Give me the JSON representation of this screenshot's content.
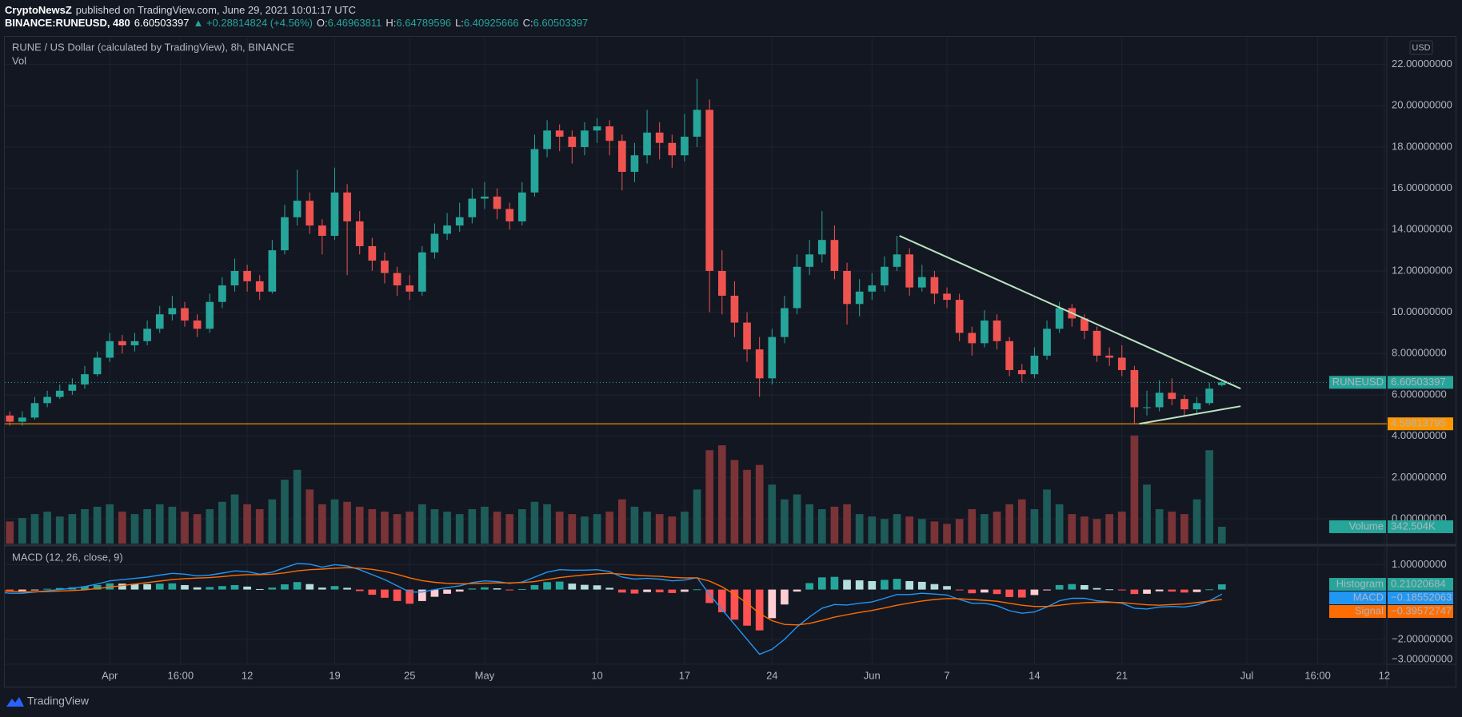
{
  "header": {
    "publisher": "CryptoNewsZ",
    "published": "published on TradingView.com, June 29, 2021 10:01:17 UTC",
    "symbol": "BINANCE:RUNEUSD, 480",
    "price": "6.60503397",
    "change": "▲ +0.28814824 (+4.56%)",
    "ohlc": [
      [
        "O:",
        "6.46963811"
      ],
      [
        "H:",
        "6.64789596"
      ],
      [
        "L:",
        "6.40925666"
      ],
      [
        "C:",
        "6.60503397"
      ]
    ],
    "currency": "USD"
  },
  "footer": {
    "brand": "TradingView"
  },
  "chart_data": [
    {
      "type": "candlestick",
      "title": "RUNE / US Dollar (calculated by TradingView), 8h, BINANCE",
      "up_color": "#26a69a",
      "down_color": "#ef5350",
      "open": [
        4.9,
        5.0,
        4.7,
        4.9,
        5.6,
        5.9,
        6.2,
        6.5,
        7.0,
        7.8,
        8.6,
        8.4,
        8.6,
        9.2,
        9.9,
        10.2,
        9.6,
        9.2,
        10.5,
        11.3,
        12.0,
        11.5,
        11.0,
        13.0,
        14.6,
        15.4,
        14.2,
        13.7,
        15.8,
        14.4,
        13.2,
        12.5,
        11.9,
        11.3,
        11.0,
        12.9,
        13.8,
        14.2,
        14.6,
        15.5,
        15.6,
        15.0,
        14.4,
        15.8,
        17.9,
        18.8,
        18.5,
        18.0,
        18.8,
        19.0,
        18.3,
        16.8,
        17.6,
        18.7,
        18.2,
        17.6,
        18.5,
        19.8,
        12.0,
        10.8,
        9.5,
        8.2,
        6.8,
        8.8,
        10.2,
        12.2,
        12.8,
        13.5,
        12.0,
        10.4,
        11.0,
        11.3,
        12.2,
        12.8,
        11.2,
        11.7,
        10.9,
        10.6,
        9.0,
        8.5,
        9.6,
        8.6,
        7.2,
        7.0,
        7.9,
        9.2,
        10.2,
        9.7,
        9.1,
        7.9,
        7.8,
        7.2,
        5.4,
        5.4,
        6.1,
        5.8,
        5.3,
        5.6,
        6.47
      ],
      "high": [
        5.3,
        5.2,
        5.2,
        5.9,
        6.2,
        6.5,
        6.8,
        7.4,
        8.1,
        9.0,
        8.9,
        9.0,
        9.6,
        10.3,
        10.8,
        10.5,
        9.9,
        10.9,
        11.7,
        12.6,
        12.3,
        11.8,
        13.5,
        15.2,
        16.9,
        15.8,
        14.5,
        17.0,
        16.2,
        14.9,
        13.6,
        12.9,
        12.2,
        11.8,
        13.2,
        14.3,
        14.8,
        15.3,
        16.0,
        16.3,
        16.0,
        15.3,
        16.3,
        18.6,
        19.3,
        19.1,
        18.8,
        19.2,
        19.4,
        19.3,
        18.6,
        18.2,
        19.8,
        19.2,
        18.6,
        19.6,
        21.3,
        20.3,
        13.0,
        11.5,
        10.0,
        8.8,
        9.2,
        10.8,
        12.8,
        13.5,
        14.9,
        14.2,
        12.4,
        11.6,
        11.9,
        12.7,
        13.7,
        13.1,
        12.3,
        12.0,
        11.2,
        10.9,
        9.3,
        10.1,
        9.9,
        8.8,
        7.5,
        8.3,
        9.6,
        10.5,
        10.4,
        9.9,
        9.3,
        8.3,
        8.4,
        7.4,
        6.2,
        6.7,
        6.8,
        6.0,
        5.9,
        6.6,
        6.65
      ],
      "low": [
        4.6,
        4.5,
        4.5,
        4.8,
        5.4,
        5.8,
        6.0,
        6.3,
        6.9,
        7.6,
        8.0,
        8.1,
        8.4,
        9.0,
        9.6,
        9.3,
        8.8,
        9.0,
        10.2,
        11.0,
        11.0,
        10.6,
        10.9,
        12.8,
        14.2,
        13.8,
        12.8,
        13.5,
        11.8,
        12.8,
        12.0,
        11.4,
        10.8,
        10.6,
        10.8,
        12.6,
        13.5,
        13.9,
        14.3,
        15.0,
        14.5,
        14.0,
        14.2,
        15.6,
        17.5,
        17.8,
        17.2,
        17.6,
        18.2,
        17.6,
        15.9,
        16.3,
        17.2,
        17.4,
        17.0,
        17.3,
        18.0,
        10.0,
        9.9,
        8.8,
        7.6,
        5.9,
        6.5,
        8.5,
        9.9,
        11.8,
        12.4,
        11.6,
        9.4,
        9.8,
        10.6,
        11.0,
        12.0,
        10.8,
        11.0,
        10.4,
        10.2,
        8.6,
        7.9,
        8.3,
        8.2,
        6.9,
        6.6,
        6.8,
        7.7,
        9.0,
        9.3,
        8.7,
        7.6,
        7.4,
        6.9,
        4.6,
        5.0,
        5.2,
        5.5,
        5.0,
        5.1,
        5.5,
        6.41
      ],
      "close": [
        5.0,
        4.7,
        4.9,
        5.6,
        5.9,
        6.2,
        6.5,
        7.0,
        7.8,
        8.6,
        8.4,
        8.6,
        9.2,
        9.9,
        10.2,
        9.6,
        9.2,
        10.5,
        11.3,
        12.0,
        11.5,
        11.0,
        13.0,
        14.6,
        15.4,
        14.2,
        13.7,
        15.8,
        14.4,
        13.2,
        12.5,
        11.9,
        11.3,
        11.0,
        12.9,
        13.8,
        14.2,
        14.6,
        15.5,
        15.6,
        15.0,
        14.4,
        15.8,
        17.9,
        18.8,
        18.5,
        18.0,
        18.8,
        19.0,
        18.3,
        16.8,
        17.6,
        18.7,
        18.2,
        17.6,
        18.5,
        19.8,
        12.0,
        10.8,
        9.5,
        8.2,
        6.8,
        8.8,
        10.2,
        12.2,
        12.8,
        13.5,
        12.0,
        10.4,
        11.0,
        11.3,
        12.2,
        12.8,
        11.2,
        11.7,
        10.9,
        10.6,
        9.0,
        8.5,
        9.6,
        8.6,
        7.2,
        7.0,
        7.9,
        9.2,
        10.2,
        9.7,
        9.1,
        7.9,
        7.8,
        7.2,
        5.4,
        5.4,
        6.1,
        5.8,
        5.3,
        5.6,
        6.3,
        6.60503397
      ],
      "last_name": "RUNEUSD",
      "last_label": "6.60503397",
      "xlim": [
        0.6,
        111.2
      ],
      "xticks": [
        {
          "value": 9,
          "label": "Apr"
        },
        {
          "value": 14.67,
          "label": "16:00"
        },
        {
          "value": 20,
          "label": "12"
        },
        {
          "value": 27,
          "label": "19"
        },
        {
          "value": 33,
          "label": "25"
        },
        {
          "value": 39,
          "label": "May"
        },
        {
          "value": 48,
          "label": "10"
        },
        {
          "value": 55,
          "label": "17"
        },
        {
          "value": 62,
          "label": "24"
        },
        {
          "value": 70,
          "label": "Jun"
        },
        {
          "value": 76,
          "label": "7"
        },
        {
          "value": 83,
          "label": "14"
        },
        {
          "value": 90,
          "label": "21"
        },
        {
          "value": 100,
          "label": "Jul"
        },
        {
          "value": 105.67,
          "label": "16:00"
        },
        {
          "value": 111,
          "label": "12"
        }
      ],
      "ylim": [
        -1.2,
        23.3
      ],
      "yticks": [
        {
          "value": 0,
          "label": "0.00000000"
        },
        {
          "value": 2,
          "label": "2.00000000"
        },
        {
          "value": 4,
          "label": "4.00000000"
        },
        {
          "value": 6,
          "label": "6.00000000"
        },
        {
          "value": 8,
          "label": "8.00000000"
        },
        {
          "value": 10,
          "label": "10.00000000"
        },
        {
          "value": 12,
          "label": "12.00000000"
        },
        {
          "value": 14,
          "label": "14.00000000"
        },
        {
          "value": 16,
          "label": "16.00000000"
        },
        {
          "value": 18,
          "label": "18.00000000"
        },
        {
          "value": 20,
          "label": "20.00000000"
        },
        {
          "value": 22,
          "label": "22.00000000"
        }
      ],
      "grid": true,
      "hline": {
        "value": 4.59813795,
        "label": "4.59813795",
        "color": "#ff9800"
      },
      "trendlines": [
        {
          "color": "#b9e4c0",
          "points": [
            [
              72.2,
              13.7
            ],
            [
              99.5,
              6.3
            ]
          ]
        },
        {
          "color": "#b9e4c0",
          "points": [
            [
              91.4,
              4.6
            ],
            [
              99.5,
              5.45
            ]
          ]
        }
      ]
    },
    {
      "type": "bar",
      "title": "Vol",
      "up_color": "#1d5c58",
      "down_color": "#7a3336",
      "values": [
        500000,
        450000,
        520000,
        600000,
        650000,
        550000,
        600000,
        700000,
        750000,
        800000,
        650000,
        600000,
        700000,
        800000,
        750000,
        650000,
        600000,
        700000,
        850000,
        1000000,
        800000,
        700000,
        900000,
        1300000,
        1500000,
        1100000,
        800000,
        900000,
        850000,
        750000,
        700000,
        650000,
        600000,
        650000,
        800000,
        700000,
        650000,
        600000,
        700000,
        750000,
        650000,
        600000,
        700000,
        850000,
        800000,
        650000,
        600000,
        550000,
        600000,
        650000,
        900000,
        750000,
        650000,
        600000,
        550000,
        650000,
        1100000,
        1900000,
        2000000,
        1700000,
        1500000,
        1600000,
        1200000,
        900000,
        1000000,
        800000,
        700000,
        750000,
        800000,
        600000,
        550000,
        500000,
        600000,
        550000,
        500000,
        450000,
        400000,
        500000,
        700000,
        600000,
        650000,
        800000,
        900000,
        700000,
        1100000,
        800000,
        600000,
        550000,
        500000,
        600000,
        650000,
        2200000,
        1200000,
        700000,
        650000,
        600000,
        900000,
        1900000,
        342504
      ],
      "ylim": [
        0,
        10300000
      ],
      "last_name": "Volume",
      "last_label": "342.504K",
      "tag_color": "#26a69a"
    },
    {
      "type": "macd",
      "title": "MACD (12, 26, close, 9)",
      "series": [
        {
          "name": "Histogram",
          "colors": [
            "#26a69a",
            "#b2dfdb",
            "#ff5252",
            "#ffcdd2"
          ],
          "tag_color": "#26a69a",
          "last_label": "0.21020684",
          "values": [
            -0.05,
            -0.08,
            -0.06,
            -0.01,
            0.03,
            0.06,
            0.09,
            0.13,
            0.18,
            0.25,
            0.24,
            0.23,
            0.22,
            0.24,
            0.25,
            0.18,
            0.09,
            0.1,
            0.14,
            0.18,
            0.12,
            0.02,
            0.08,
            0.21,
            0.3,
            0.22,
            0.08,
            0.14,
            0.07,
            -0.06,
            -0.21,
            -0.33,
            -0.46,
            -0.57,
            -0.46,
            -0.29,
            -0.17,
            -0.08,
            0.04,
            0.09,
            0.05,
            -0.02,
            0.02,
            0.18,
            0.3,
            0.32,
            0.24,
            0.19,
            0.17,
            0.07,
            -0.12,
            -0.16,
            -0.1,
            -0.11,
            -0.14,
            -0.09,
            0.01,
            -0.54,
            -0.91,
            -1.21,
            -1.45,
            -1.64,
            -1.15,
            -0.6,
            -0.08,
            0.26,
            0.49,
            0.51,
            0.39,
            0.37,
            0.34,
            0.39,
            0.43,
            0.34,
            0.31,
            0.22,
            0.14,
            -0.03,
            -0.15,
            -0.12,
            -0.18,
            -0.3,
            -0.32,
            -0.22,
            -0.02,
            0.18,
            0.22,
            0.18,
            0.06,
            0.01,
            -0.03,
            -0.18,
            -0.17,
            -0.07,
            -0.08,
            -0.12,
            -0.1,
            0.01,
            0.21020684
          ]
        },
        {
          "name": "MACD",
          "color": "#2196f3",
          "tag_color": "#2196f3",
          "last_label": "−0.18552063",
          "values": [
            -0.1,
            -0.15,
            -0.15,
            -0.1,
            -0.05,
            0,
            0.05,
            0.12,
            0.22,
            0.35,
            0.4,
            0.45,
            0.5,
            0.58,
            0.65,
            0.62,
            0.55,
            0.58,
            0.66,
            0.75,
            0.72,
            0.62,
            0.7,
            0.88,
            1.05,
            1.02,
            0.9,
            1.0,
            0.95,
            0.8,
            0.6,
            0.4,
            0.15,
            -0.1,
            -0.1,
            0.0,
            0.08,
            0.15,
            0.28,
            0.35,
            0.32,
            0.25,
            0.3,
            0.5,
            0.7,
            0.8,
            0.78,
            0.78,
            0.8,
            0.72,
            0.5,
            0.42,
            0.45,
            0.42,
            0.35,
            0.38,
            0.48,
            -0.2,
            -0.8,
            -1.4,
            -2.0,
            -2.6,
            -2.4,
            -2.0,
            -1.5,
            -1.1,
            -0.75,
            -0.6,
            -0.62,
            -0.55,
            -0.5,
            -0.35,
            -0.2,
            -0.2,
            -0.15,
            -0.18,
            -0.22,
            -0.4,
            -0.55,
            -0.55,
            -0.65,
            -0.85,
            -0.95,
            -0.9,
            -0.7,
            -0.45,
            -0.35,
            -0.35,
            -0.45,
            -0.5,
            -0.55,
            -0.75,
            -0.78,
            -0.7,
            -0.68,
            -0.7,
            -0.62,
            -0.45,
            -0.18552063
          ]
        },
        {
          "name": "Signal",
          "color": "#ff6d00",
          "tag_color": "#ff6d00",
          "last_label": "−0.39572747",
          "values": [
            -0.05,
            -0.07,
            -0.09,
            -0.09,
            -0.08,
            -0.06,
            -0.04,
            -0.01,
            0.04,
            0.1,
            0.16,
            0.22,
            0.28,
            0.34,
            0.4,
            0.44,
            0.46,
            0.48,
            0.52,
            0.57,
            0.6,
            0.6,
            0.62,
            0.67,
            0.75,
            0.8,
            0.82,
            0.86,
            0.88,
            0.86,
            0.81,
            0.73,
            0.61,
            0.47,
            0.36,
            0.29,
            0.25,
            0.23,
            0.24,
            0.26,
            0.27,
            0.27,
            0.28,
            0.32,
            0.4,
            0.48,
            0.54,
            0.59,
            0.63,
            0.65,
            0.62,
            0.58,
            0.55,
            0.53,
            0.49,
            0.47,
            0.47,
            0.34,
            0.11,
            -0.19,
            -0.55,
            -0.96,
            -1.25,
            -1.4,
            -1.42,
            -1.36,
            -1.24,
            -1.11,
            -1.01,
            -0.92,
            -0.84,
            -0.74,
            -0.63,
            -0.54,
            -0.46,
            -0.4,
            -0.36,
            -0.37,
            -0.4,
            -0.43,
            -0.47,
            -0.55,
            -0.63,
            -0.68,
            -0.68,
            -0.63,
            -0.57,
            -0.53,
            -0.51,
            -0.51,
            -0.52,
            -0.57,
            -0.61,
            -0.63,
            -0.6,
            -0.58,
            -0.52,
            -0.46,
            -0.39572747
          ]
        }
      ],
      "ylim": [
        -3.0,
        1.72
      ],
      "yticks": [
        {
          "value": 1,
          "label": "1.00000000"
        },
        {
          "value": -2,
          "label": "−2.00000000"
        },
        {
          "value": -3,
          "label": "−3.00000000"
        }
      ]
    }
  ]
}
